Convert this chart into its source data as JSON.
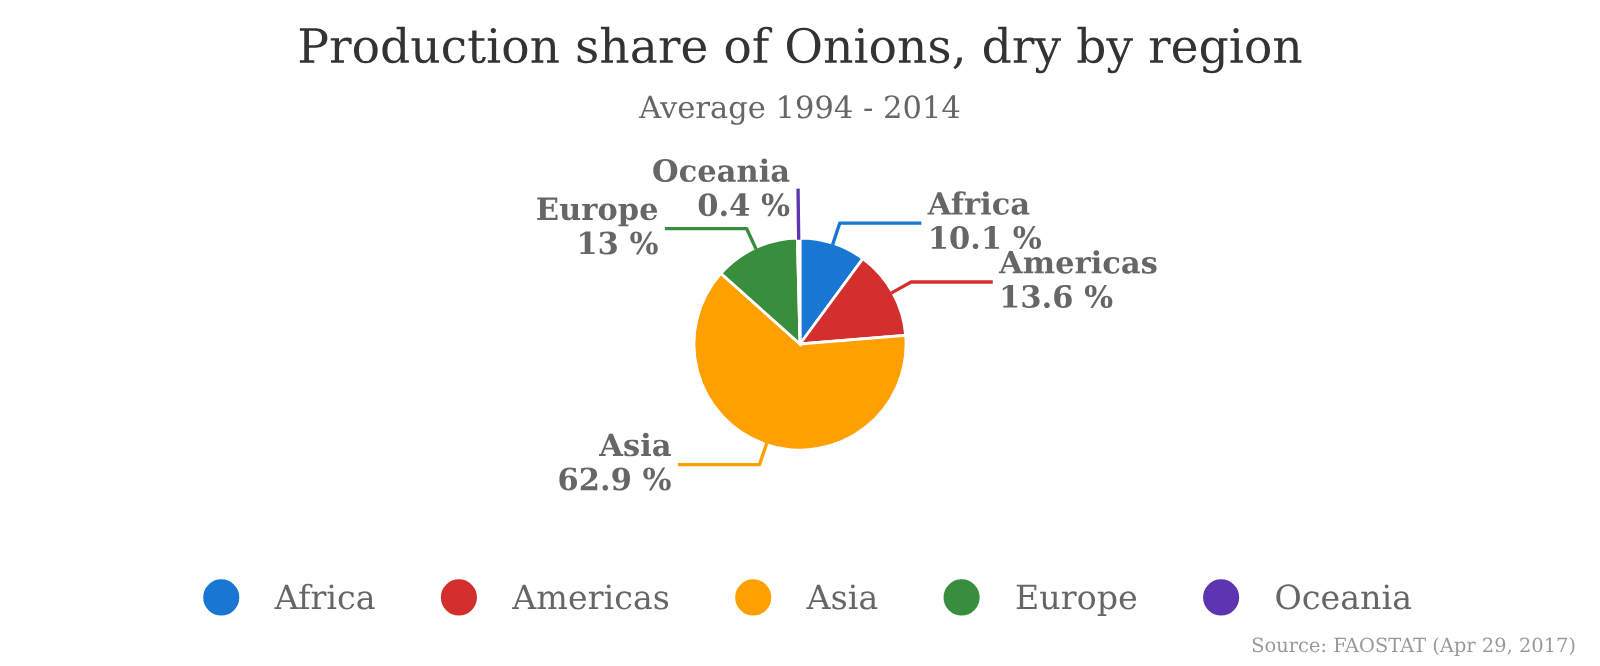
{
  "chart_data": {
    "type": "pie",
    "title": "Production share of Onions, dry by region",
    "subtitle": "Average 1994 - 2014",
    "categories": [
      "Africa",
      "Americas",
      "Asia",
      "Europe",
      "Oceania"
    ],
    "values": [
      10.1,
      13.6,
      62.9,
      13,
      0.4
    ],
    "value_labels": [
      "10.1 %",
      "13.6 %",
      "62.9 %",
      "13 %",
      "0.4 %"
    ],
    "colors": [
      "#1976d2",
      "#d32f2f",
      "#ffa000",
      "#388e3c",
      "#5e35b1"
    ],
    "legend": "bottom",
    "annotations": [
      "Source: FAOSTAT (Apr 29, 2017)"
    ]
  }
}
